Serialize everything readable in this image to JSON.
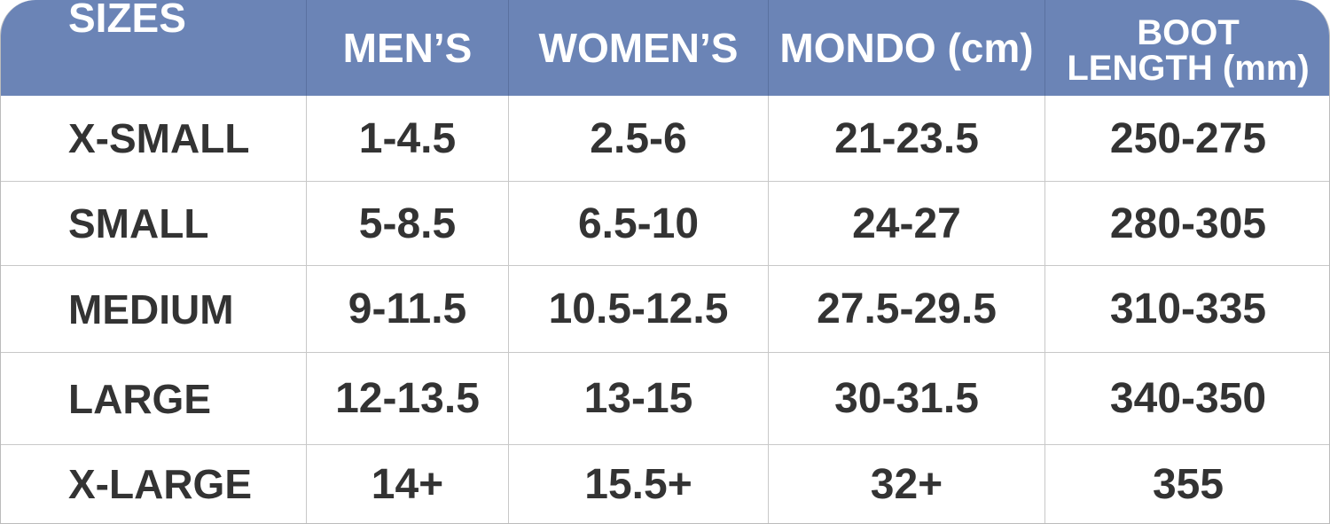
{
  "table": {
    "header": [
      "SIZES",
      "MEN’S",
      "WOMEN’S",
      "MONDO (cm)",
      [
        "BOOT",
        "LENGTH (mm)"
      ]
    ],
    "rows": [
      [
        "X-SMALL",
        "1-4.5",
        "2.5-6",
        "21-23.5",
        "250-275"
      ],
      [
        "SMALL",
        "5-8.5",
        "6.5-10",
        "24-27",
        "280-305"
      ],
      [
        "MEDIUM",
        "9-11.5",
        "10.5-12.5",
        "27.5-29.5",
        "310-335"
      ],
      [
        "LARGE",
        "12-13.5",
        "13-15",
        "30-31.5",
        "340-350"
      ],
      [
        "X-LARGE",
        "14+",
        "15.5+",
        "32+",
        "355"
      ]
    ]
  }
}
